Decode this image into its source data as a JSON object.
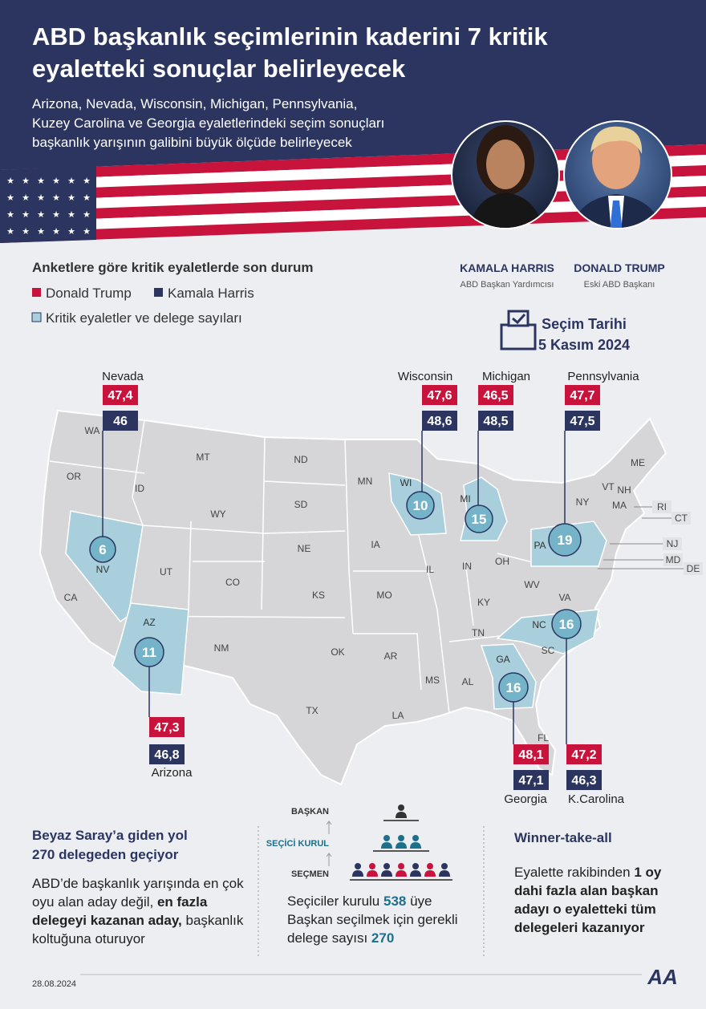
{
  "header": {
    "title_lines": [
      "ABD başkanlık seçimlerinin kaderini 7 kritik",
      "eyaletteki sonuçlar belirleyecek"
    ],
    "subtitle_lines": [
      "Arizona, Nevada, Wisconsin, Michigan, Pennsylvania,",
      "Kuzey Carolina ve Georgia eyaletlerindeki seçim sonuçları",
      "başkanlık yarışının galibini büyük ölçüde belirleyecek"
    ]
  },
  "candidates": [
    {
      "name": "KAMALA HARRIS",
      "role": "ABD Başkan Yardımcısı"
    },
    {
      "name": "DONALD TRUMP",
      "role": "Eski ABD Başkanı"
    }
  ],
  "legend": {
    "title": "Anketlere göre kritik eyaletlerde son durum",
    "items": [
      "Donald Trump",
      "Kamala Harris",
      "Kritik eyaletler ve delege sayıları"
    ]
  },
  "election_date": {
    "label": "Seçim Tarihi",
    "date": "5 Kasım 2024"
  },
  "swing_states": [
    {
      "name": "Nevada",
      "abbr": "NV",
      "delegates": 6,
      "trump": "47,4",
      "harris": "46"
    },
    {
      "name": "Wisconsin",
      "abbr": "WI",
      "delegates": 10,
      "trump": "47,6",
      "harris": "48,6"
    },
    {
      "name": "Michigan",
      "abbr": "MI",
      "delegates": 15,
      "trump": "46,5",
      "harris": "48,5"
    },
    {
      "name": "Pennsylvania",
      "abbr": "PA",
      "delegates": 19,
      "trump": "47,7",
      "harris": "47,5"
    },
    {
      "name": "Arizona",
      "abbr": "AZ",
      "delegates": 11,
      "trump": "47,3",
      "harris": "46,8"
    },
    {
      "name": "Georgia",
      "abbr": "GA",
      "delegates": 16,
      "trump": "48,1",
      "harris": "47,1"
    },
    {
      "name": "K.Carolina",
      "abbr": "NC",
      "delegates": 16,
      "trump": "47,2",
      "harris": "46,3"
    }
  ],
  "map": {
    "state_labels": [
      "WA",
      "OR",
      "CA",
      "ID",
      "MT",
      "WY",
      "UT",
      "CO",
      "NM",
      "ND",
      "SD",
      "NE",
      "KS",
      "OK",
      "TX",
      "MN",
      "IA",
      "MO",
      "AR",
      "LA",
      "MS",
      "AL",
      "IL",
      "IN",
      "OH",
      "KY",
      "TN",
      "WV",
      "VA",
      "SC",
      "FL",
      "NY",
      "VT",
      "NH",
      "ME",
      "MA"
    ],
    "small_states": [
      "RI",
      "CT",
      "NJ",
      "MD",
      "DE"
    ]
  },
  "sections": [
    {
      "title_lines": [
        "Beyaz Saray’a giden yol",
        "270 delegeden geçiyor"
      ],
      "body": [
        "ABD’de başkanlık yarışında en çok oyu alan aday değil, ",
        "en fazla delegeyi kazanan aday,",
        " başkanlık koltuğuna oturuyor"
      ]
    },
    {
      "levels": [
        "BAŞKAN",
        "SEÇİCİ KURUL",
        "SEÇMEN"
      ],
      "body": [
        "Seçiciler kurulu ",
        538,
        " üye Başkan seçilmek için gerekli delege sayısı ",
        270
      ]
    },
    {
      "title": "Winner-take-all",
      "body": [
        "Eyalette rakibinden ",
        "1 oy dahi fazla alan başkan adayı o eyaletteki tüm delegeleri kazanıyor"
      ]
    }
  ],
  "footer": {
    "date": "28.08.2024",
    "logo": "AA"
  }
}
